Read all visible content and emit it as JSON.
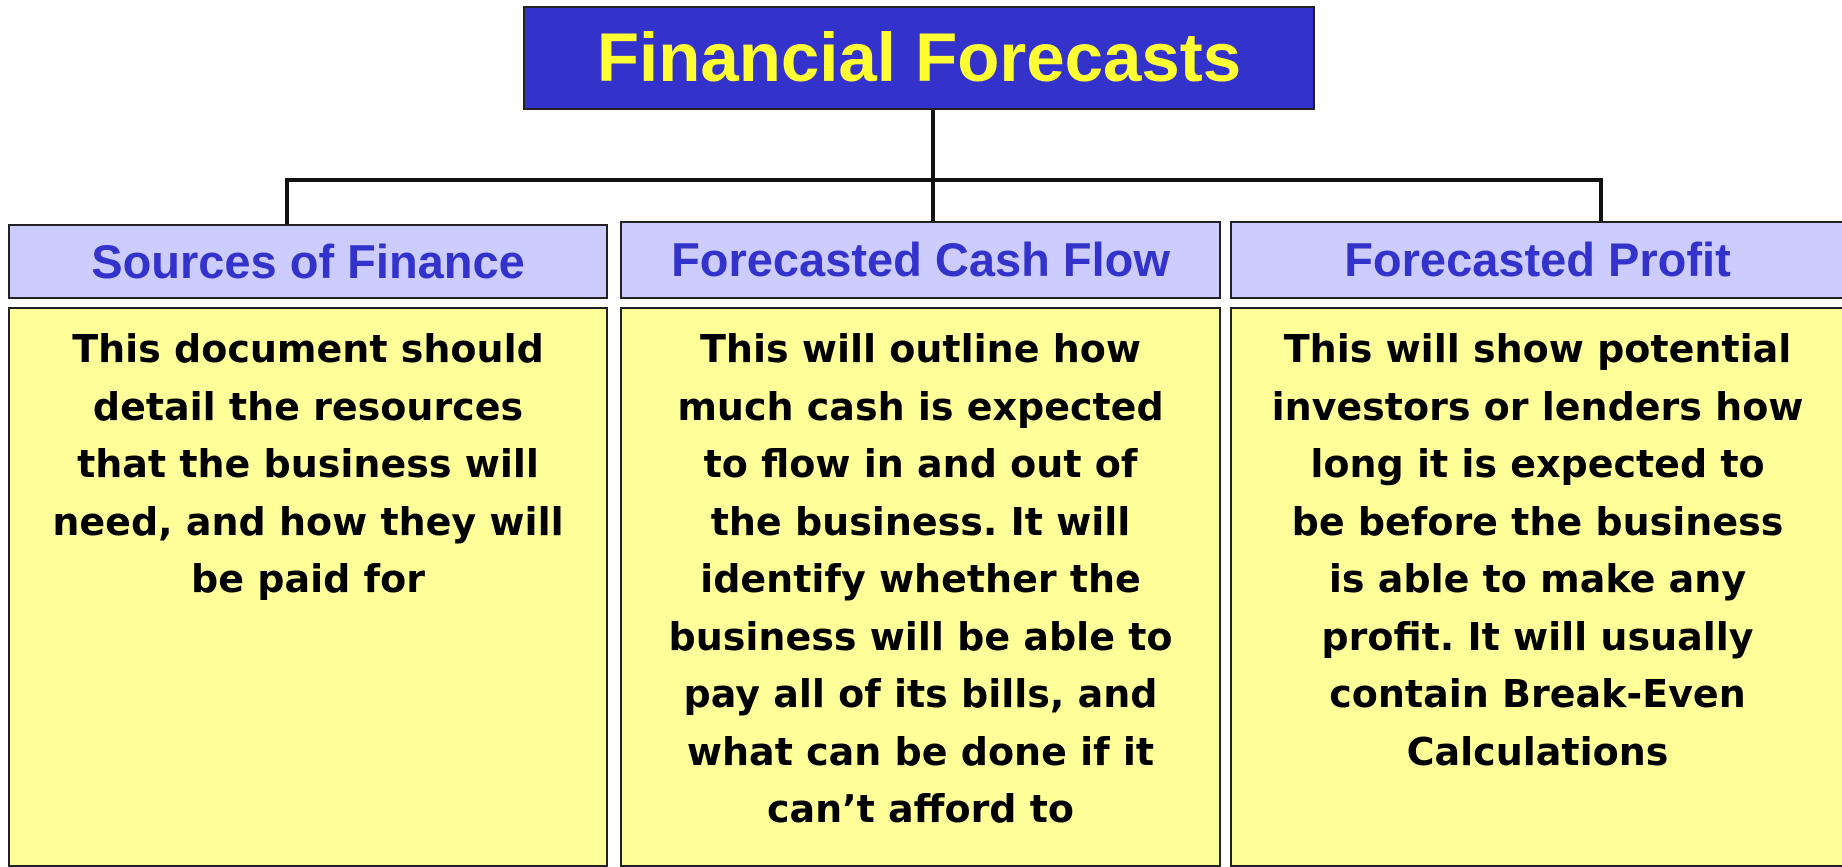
{
  "title": "Financial Forecasts",
  "columns": [
    {
      "heading": "Sources of Finance",
      "lines": [
        "This document should",
        "detail the resources",
        "that the business will",
        "need, and how they will",
        "be paid for"
      ]
    },
    {
      "heading": "Forecasted Cash Flow",
      "lines": [
        "This will outline how",
        "much cash is expected",
        "to flow in and out of",
        "the business.  It will",
        "identify whether the",
        "business will be able to",
        "pay all of its bills, and",
        "what can be done if it",
        "can’t afford to"
      ]
    },
    {
      "heading": "Forecasted Profit",
      "lines": [
        "This will show potential",
        "investors or lenders how",
        "long it is expected to",
        "be before the business",
        "is able to make any",
        "profit. It will usually",
        "contain Break-Even",
        "Calculations"
      ]
    }
  ]
}
